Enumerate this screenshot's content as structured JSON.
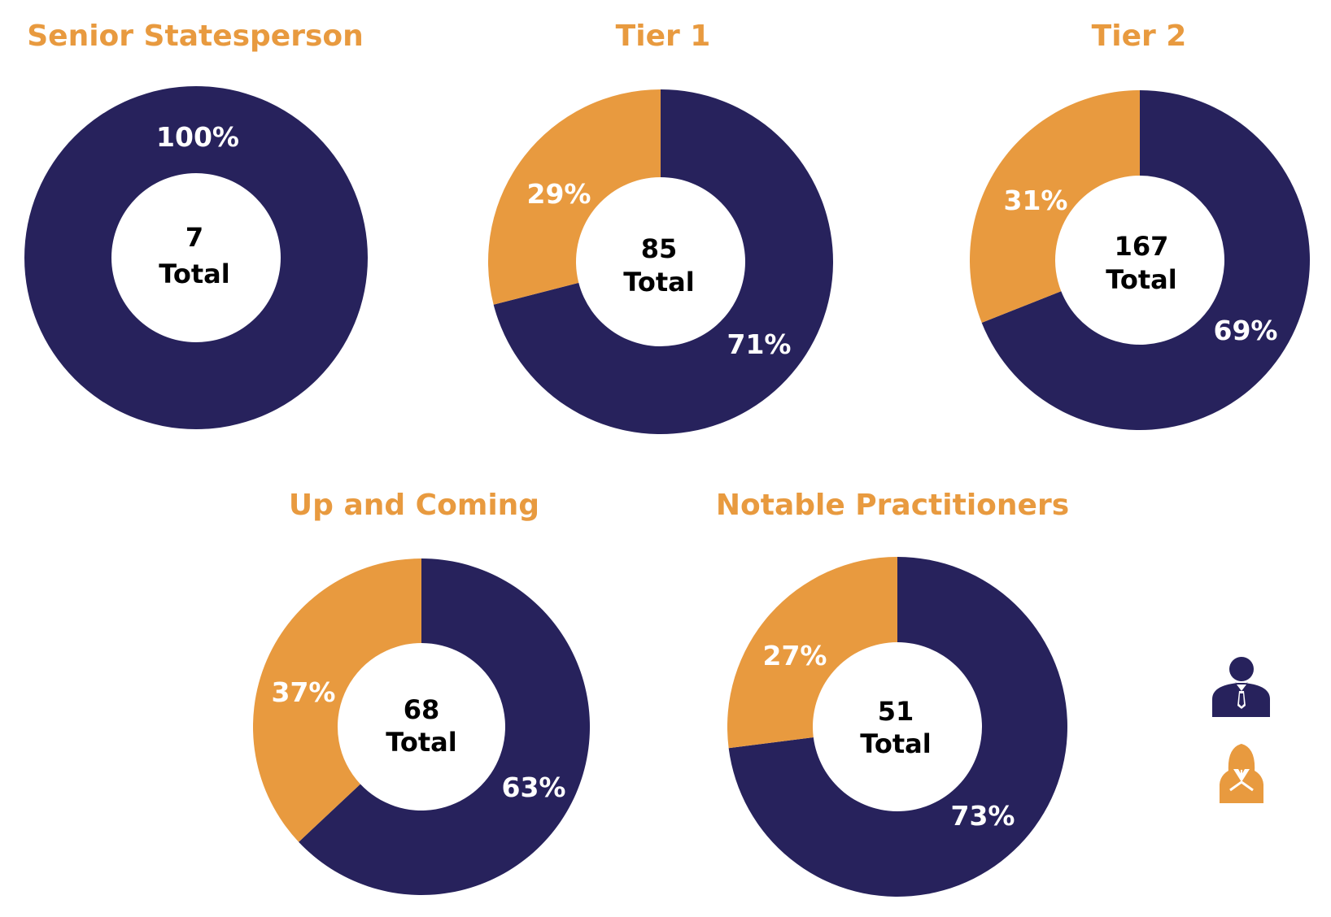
{
  "colors": {
    "male": "#27225C",
    "female": "#E89A3F",
    "title": "#E89A3F",
    "background": "#FFFFFF"
  },
  "legend": [
    {
      "icon": "male-person-icon",
      "color": "#27225C"
    },
    {
      "icon": "female-person-icon",
      "color": "#E89A3F"
    }
  ],
  "chart_data": [
    {
      "type": "pie",
      "title": "Senior Statesperson",
      "total": "7",
      "total_label": "Total",
      "slices": [
        {
          "value": 100,
          "label": "100%",
          "color": "#27225C"
        },
        {
          "value": 0,
          "label": "",
          "color": "#E89A3F"
        }
      ]
    },
    {
      "type": "pie",
      "title": "Tier 1",
      "total": "85",
      "total_label": "Total",
      "slices": [
        {
          "value": 71,
          "label": "71%",
          "color": "#27225C"
        },
        {
          "value": 29,
          "label": "29%",
          "color": "#E89A3F"
        }
      ]
    },
    {
      "type": "pie",
      "title": "Tier 2",
      "total": "167",
      "total_label": "Total",
      "slices": [
        {
          "value": 69,
          "label": "69%",
          "color": "#27225C"
        },
        {
          "value": 31,
          "label": "31%",
          "color": "#E89A3F"
        }
      ]
    },
    {
      "type": "pie",
      "title": "Up and Coming",
      "total": "68",
      "total_label": "Total",
      "slices": [
        {
          "value": 63,
          "label": "63%",
          "color": "#27225C"
        },
        {
          "value": 37,
          "label": "37%",
          "color": "#E89A3F"
        }
      ]
    },
    {
      "type": "pie",
      "title": "Notable Practitioners",
      "total": "51",
      "total_label": "Total",
      "slices": [
        {
          "value": 73,
          "label": "73%",
          "color": "#27225C"
        },
        {
          "value": 27,
          "label": "27%",
          "color": "#E89A3F"
        }
      ]
    }
  ]
}
